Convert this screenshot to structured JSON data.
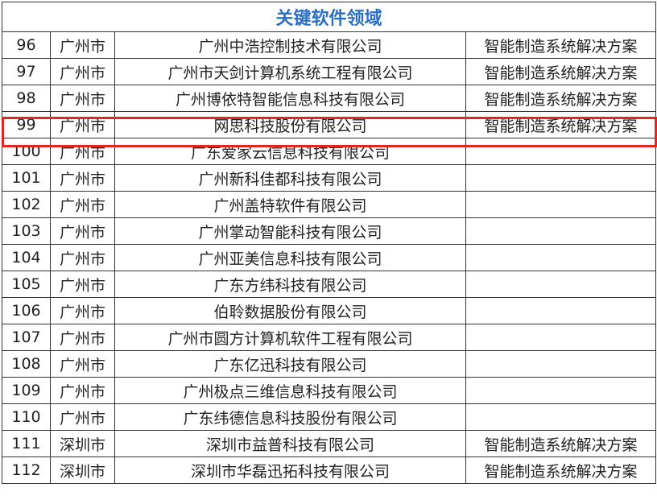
{
  "title": "关键软件领域",
  "highlight_color": "#e3261f",
  "title_color": "#2a6fc4",
  "rows": [
    {
      "no": "96",
      "city": "广州市",
      "company": "广州中浩控制技术有限公司",
      "field": "智能制造系统解决方案"
    },
    {
      "no": "97",
      "city": "广州市",
      "company": "广州市天剑计算机系统工程有限公司",
      "field": "智能制造系统解决方案"
    },
    {
      "no": "98",
      "city": "广州市",
      "company": "广州博依特智能信息科技有限公司",
      "field": "智能制造系统解决方案"
    },
    {
      "no": "99",
      "city": "广州市",
      "company": "网思科技股份有限公司",
      "field": "智能制造系统解决方案",
      "highlighted": true
    },
    {
      "no": "100",
      "city": "广州市",
      "company": "广东爱家云信息科技有限公司",
      "field": ""
    },
    {
      "no": "101",
      "city": "广州市",
      "company": "广州新科佳都科技有限公司",
      "field": ""
    },
    {
      "no": "102",
      "city": "广州市",
      "company": "广州盖特软件有限公司",
      "field": ""
    },
    {
      "no": "103",
      "city": "广州市",
      "company": "广州掌动智能科技有限公司",
      "field": ""
    },
    {
      "no": "104",
      "city": "广州市",
      "company": "广州亚美信息科技有限公司",
      "field": ""
    },
    {
      "no": "105",
      "city": "广州市",
      "company": "广东方纬科技有限公司",
      "field": ""
    },
    {
      "no": "106",
      "city": "广州市",
      "company": "伯聆数据股份有限公司",
      "field": ""
    },
    {
      "no": "107",
      "city": "广州市",
      "company": "广州市圆方计算机软件工程有限公司",
      "field": ""
    },
    {
      "no": "108",
      "city": "广州市",
      "company": "广东亿迅科技有限公司",
      "field": ""
    },
    {
      "no": "109",
      "city": "广州市",
      "company": "广州极点三维信息科技有限公司",
      "field": ""
    },
    {
      "no": "110",
      "city": "广州市",
      "company": "广东纬德信息科技股份有限公司",
      "field": ""
    },
    {
      "no": "111",
      "city": "深圳市",
      "company": "深圳市益普科技有限公司",
      "field": "智能制造系统解决方案"
    },
    {
      "no": "112",
      "city": "深圳市",
      "company": "深圳市华磊迅拓科技有限公司",
      "field": "智能制造系统解决方案"
    }
  ]
}
